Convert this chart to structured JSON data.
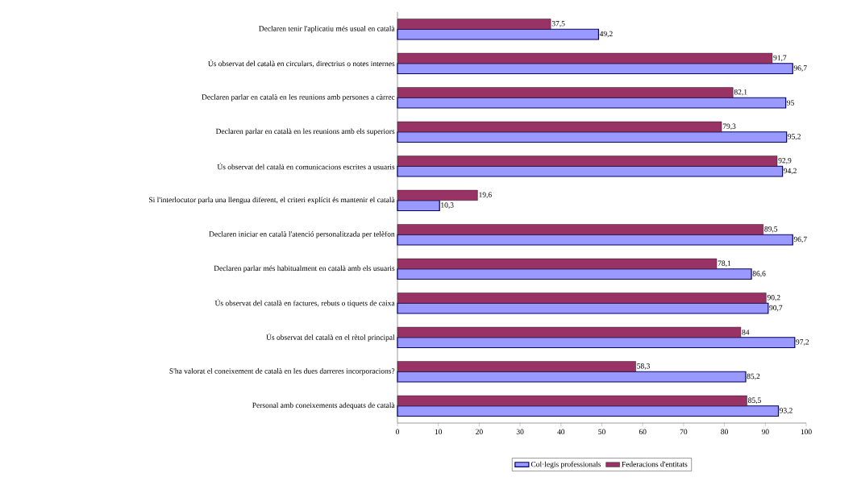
{
  "chart_data": {
    "type": "bar",
    "orientation": "horizontal",
    "categories": [
      "Declaren tenir l'aplicatiu més usual en català",
      "Ús observat del català en circulars, directrius o notes internes",
      "Declaren parlar en català en les reunions amb persones a càrrec",
      "Declaren parlar en català en les reunions amb els superiors",
      "Ús observat del català en comunicacions escrites a usuaris",
      "Si l'interlocutor parla una llengua diferent, el criteri explícit és mantenir el català",
      "Declaren iniciar en català l'atenció personalitzada per telèfon",
      "Declaren parlar més habitualment en català amb els usuaris",
      "Ús observat del català en factures, rebuts o tiquets de caixa",
      "Ús observat del català en el rètol principal",
      "S'ha valorat el coneixement de català en les dues darreres incorporacions?",
      "Personal amb coneixements adequats de català"
    ],
    "series": [
      {
        "name": "Col·legis professionals",
        "color": "#9999ff",
        "values": [
          49.2,
          96.7,
          95,
          95.2,
          94.2,
          10.3,
          96.7,
          86.6,
          90.7,
          97.2,
          85.2,
          93.2
        ],
        "value_labels": [
          "49,2",
          "96,7",
          "95",
          "95,2",
          "94,2",
          "10,3",
          "96,7",
          "86,6",
          "90,7",
          "97,2",
          "85,2",
          "93,2"
        ]
      },
      {
        "name": "Federacions d'entitats",
        "color": "#993366",
        "values": [
          37.5,
          91.7,
          82.1,
          79.3,
          92.9,
          19.6,
          89.5,
          78.1,
          90.2,
          84,
          58.3,
          85.5
        ],
        "value_labels": [
          "37,5",
          "91,7",
          "82,1",
          "79,3",
          "92,9",
          "19,6",
          "89,5",
          "78,1",
          "90,2",
          "84",
          "58,3",
          "85,5"
        ]
      }
    ],
    "xlim": [
      0,
      100
    ],
    "xticks": [
      0,
      10,
      20,
      30,
      40,
      50,
      60,
      70,
      80,
      90,
      100
    ],
    "grid": false,
    "legend": "bottom"
  }
}
